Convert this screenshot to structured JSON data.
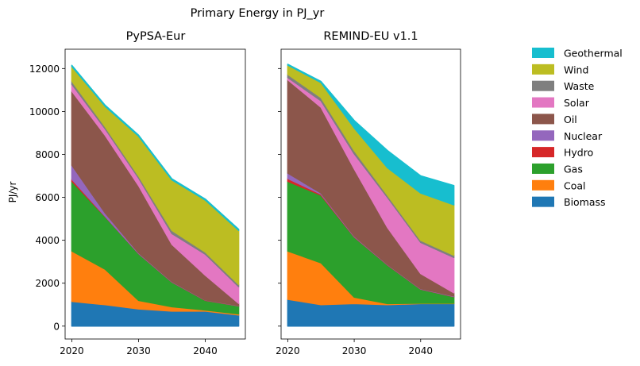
{
  "chart_data": {
    "type": "area",
    "stacked": true,
    "suptitle": "Primary Energy in PJ_yr",
    "ylabel": "PJ/yr",
    "ylim": [
      -600,
      12900
    ],
    "yticks": [
      0,
      2000,
      4000,
      6000,
      8000,
      10000,
      12000
    ],
    "xlim": [
      2019,
      2046
    ],
    "xticks": [
      2020,
      2030,
      2040
    ],
    "x": [
      2020,
      2025,
      2030,
      2035,
      2040,
      2045
    ],
    "legend_order": [
      "Geothermal",
      "Wind",
      "Waste",
      "Solar",
      "Oil",
      "Nuclear",
      "Hydro",
      "Gas",
      "Coal",
      "Biomass"
    ],
    "legend_position": "right",
    "colors": {
      "Biomass": "#1f77b4",
      "Coal": "#ff7f0e",
      "Gas": "#2ca02c",
      "Hydro": "#d62728",
      "Nuclear": "#9467bd",
      "Oil": "#8c564b",
      "Solar": "#e377c2",
      "Waste": "#7f7f7f",
      "Wind": "#bcbd22",
      "Geothermal": "#17becf"
    },
    "panels": [
      {
        "title": "PyPSA-Eur",
        "series": [
          {
            "name": "Biomass",
            "values": [
              1150,
              1000,
              800,
              700,
              700,
              520
            ]
          },
          {
            "name": "Coal",
            "values": [
              2350,
              1650,
              400,
              200,
              50,
              50
            ]
          },
          {
            "name": "Gas",
            "values": [
              3250,
              2450,
              2180,
              1150,
              450,
              370
            ]
          },
          {
            "name": "Hydro",
            "values": [
              100,
              20,
              10,
              10,
              10,
              10
            ]
          },
          {
            "name": "Nuclear",
            "values": [
              650,
              150,
              30,
              20,
              10,
              10
            ]
          },
          {
            "name": "Oil",
            "values": [
              3450,
              3620,
              3130,
              1730,
              1150,
              100
            ]
          },
          {
            "name": "Solar",
            "values": [
              320,
              300,
              350,
              500,
              980,
              780
            ]
          },
          {
            "name": "Waste",
            "values": [
              150,
              100,
              100,
              150,
              100,
              100
            ]
          },
          {
            "name": "Wind",
            "values": [
              680,
              950,
              1850,
              2350,
              2420,
              2520
            ]
          },
          {
            "name": "Geothermal",
            "values": [
              50,
              50,
              50,
              50,
              50,
              50
            ]
          }
        ]
      },
      {
        "title": "REMIND-EU v1.1",
        "series": [
          {
            "name": "Biomass",
            "values": [
              1250,
              1000,
              1050,
              1000,
              1050,
              1050
            ]
          },
          {
            "name": "Coal",
            "values": [
              2250,
              1950,
              300,
              50,
              20,
              20
            ]
          },
          {
            "name": "Gas",
            "values": [
              3250,
              3150,
              2800,
              1800,
              650,
              300
            ]
          },
          {
            "name": "Hydro",
            "values": [
              130,
              50,
              20,
              10,
              10,
              10
            ]
          },
          {
            "name": "Nuclear",
            "values": [
              250,
              50,
              30,
              20,
              20,
              20
            ]
          },
          {
            "name": "Oil",
            "values": [
              4350,
              4000,
              3130,
              1720,
              700,
              150
            ]
          },
          {
            "name": "Solar",
            "values": [
              100,
              300,
              700,
              1400,
              1450,
              1650
            ]
          },
          {
            "name": "Waste",
            "values": [
              150,
              150,
              150,
              100,
              100,
              100
            ]
          },
          {
            "name": "Wind",
            "values": [
              430,
              700,
              1050,
              1280,
              2200,
              2350
            ]
          },
          {
            "name": "Geothermal",
            "values": [
              40,
              50,
              350,
              800,
              800,
              900
            ]
          }
        ]
      }
    ]
  }
}
